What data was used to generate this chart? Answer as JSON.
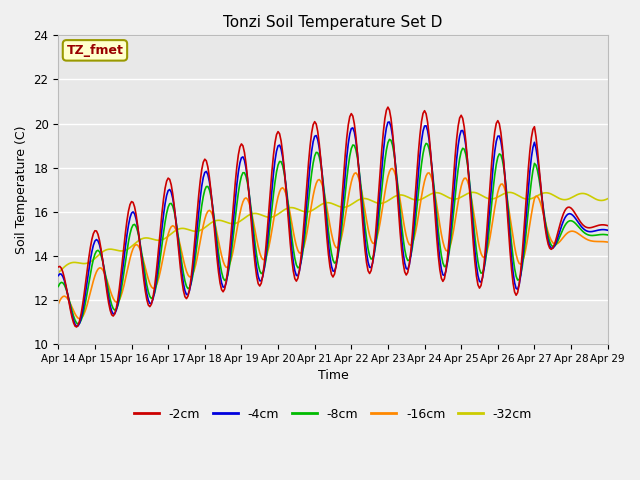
{
  "title": "Tonzi Soil Temperature Set D",
  "xlabel": "Time",
  "ylabel": "Soil Temperature (C)",
  "ylim": [
    10,
    24
  ],
  "xlim": [
    0,
    15
  ],
  "fig_facecolor": "#f0f0f0",
  "plot_bg_color": "#e8e8e8",
  "legend_label": "TZ_fmet",
  "series_labels": [
    "-2cm",
    "-4cm",
    "-8cm",
    "-16cm",
    "-32cm"
  ],
  "series_colors": [
    "#cc0000",
    "#0000dd",
    "#00bb00",
    "#ff8800",
    "#cccc00"
  ],
  "xtick_labels": [
    "Apr 14",
    "Apr 15",
    "Apr 16",
    "Apr 17",
    "Apr 18",
    "Apr 19",
    "Apr 20",
    "Apr 21",
    "Apr 22",
    "Apr 23",
    "Apr 24",
    "Apr 25",
    "Apr 26",
    "Apr 27",
    "Apr 28",
    "Apr 29"
  ],
  "ytick_values": [
    10,
    12,
    14,
    16,
    18,
    20,
    22,
    24
  ],
  "num_points": 361,
  "grid_color": "#ffffff",
  "annotation_text": "TZ_fmet",
  "annotation_color": "#990000",
  "annotation_bg": "#ffffcc",
  "annotation_edge": "#999900"
}
